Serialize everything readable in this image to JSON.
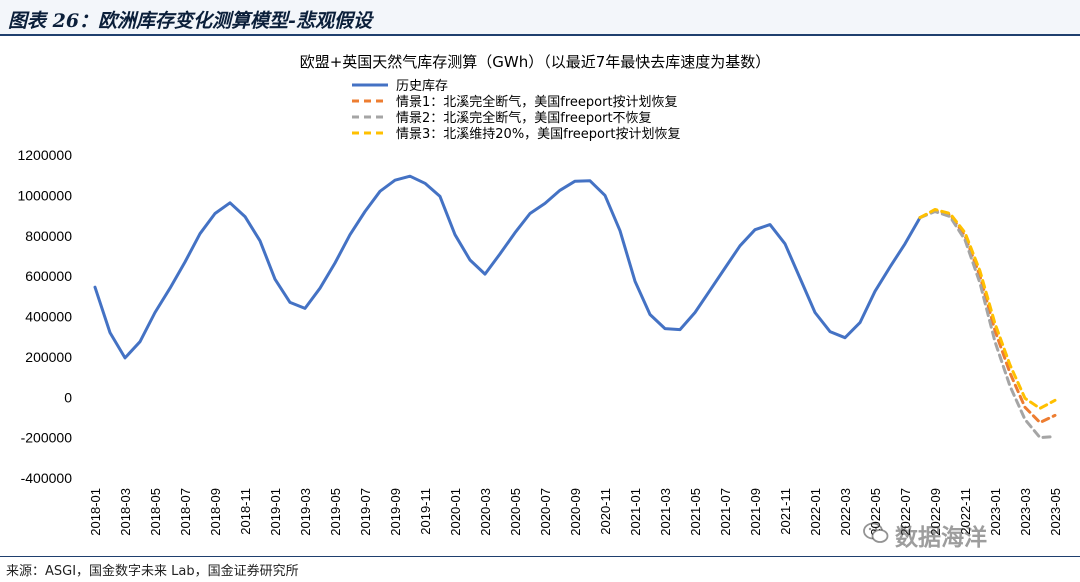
{
  "figure": {
    "label": "图表 26：欧洲库存变化测算模型-悲观假设",
    "source": "来源：ASGI，国金数字未来 Lab，国金证券研究所",
    "watermark": "数据海洋"
  },
  "chart_data": {
    "type": "line",
    "title": "欧盟+英国天然气库存测算（GWh）（以最近7年最快去库速度为基数）",
    "xlabel": "",
    "ylabel": "",
    "ylim": [
      -400000,
      1200000
    ],
    "yticks": [
      -400000,
      -200000,
      0,
      200000,
      400000,
      600000,
      800000,
      1000000,
      1200000
    ],
    "ytick_labels": [
      "-400000",
      "-200000",
      "0",
      "200000",
      "400000",
      "600000",
      "800000",
      "1000000",
      "1200000"
    ],
    "xticks": [
      "2018-01",
      "2018-03",
      "2018-05",
      "2018-07",
      "2018-09",
      "2018-11",
      "2019-01",
      "2019-03",
      "2019-05",
      "2019-07",
      "2019-09",
      "2019-11",
      "2020-01",
      "2020-03",
      "2020-05",
      "2020-07",
      "2020-09",
      "2020-11",
      "2021-01",
      "2021-03",
      "2021-05",
      "2021-07",
      "2021-09",
      "2021-11",
      "2022-01",
      "2022-03",
      "2022-05",
      "2022-07",
      "2022-09",
      "2022-11",
      "2023-01",
      "2023-03",
      "2023-05"
    ],
    "x_start": "2018-01",
    "x_end": "2023-05",
    "grid": false,
    "legend_position": "top-left",
    "series": [
      {
        "name": "历史库存",
        "color": "#4472c4",
        "dash": false,
        "points": [
          [
            "2018-01",
            545000
          ],
          [
            "2018-02",
            320000
          ],
          [
            "2018-03",
            195000
          ],
          [
            "2018-04",
            275000
          ],
          [
            "2018-05",
            420000
          ],
          [
            "2018-06",
            540000
          ],
          [
            "2018-07",
            670000
          ],
          [
            "2018-08",
            810000
          ],
          [
            "2018-09",
            910000
          ],
          [
            "2018-10",
            963000
          ],
          [
            "2018-11",
            895000
          ],
          [
            "2018-12",
            775000
          ],
          [
            "2019-01",
            585000
          ],
          [
            "2019-02",
            470000
          ],
          [
            "2019-03",
            440000
          ],
          [
            "2019-04",
            540000
          ],
          [
            "2019-05",
            665000
          ],
          [
            "2019-06",
            805000
          ],
          [
            "2019-07",
            920000
          ],
          [
            "2019-08",
            1020000
          ],
          [
            "2019-09",
            1075000
          ],
          [
            "2019-10",
            1095000
          ],
          [
            "2019-11",
            1060000
          ],
          [
            "2019-12",
            995000
          ],
          [
            "2020-01",
            805000
          ],
          [
            "2020-02",
            680000
          ],
          [
            "2020-03",
            610000
          ],
          [
            "2020-04",
            710000
          ],
          [
            "2020-05",
            815000
          ],
          [
            "2020-06",
            910000
          ],
          [
            "2020-07",
            960000
          ],
          [
            "2020-08",
            1025000
          ],
          [
            "2020-09",
            1070000
          ],
          [
            "2020-10",
            1072000
          ],
          [
            "2020-11",
            1000000
          ],
          [
            "2020-12",
            825000
          ],
          [
            "2021-01",
            575000
          ],
          [
            "2021-02",
            410000
          ],
          [
            "2021-03",
            340000
          ],
          [
            "2021-04",
            335000
          ],
          [
            "2021-05",
            420000
          ],
          [
            "2021-06",
            530000
          ],
          [
            "2021-07",
            640000
          ],
          [
            "2021-08",
            750000
          ],
          [
            "2021-09",
            830000
          ],
          [
            "2021-10",
            855000
          ],
          [
            "2021-11",
            760000
          ],
          [
            "2021-12",
            590000
          ],
          [
            "2022-01",
            420000
          ],
          [
            "2022-02",
            325000
          ],
          [
            "2022-03",
            295000
          ],
          [
            "2022-04",
            370000
          ],
          [
            "2022-05",
            525000
          ],
          [
            "2022-06",
            645000
          ],
          [
            "2022-07",
            760000
          ],
          [
            "2022-08",
            890000
          ]
        ]
      },
      {
        "name": "情景1：北溪完全断气，美国freeport按计划恢复",
        "color": "#ed7d31",
        "dash": true,
        "points": [
          [
            "2022-08",
            890000
          ],
          [
            "2022-09",
            925000
          ],
          [
            "2022-10",
            905000
          ],
          [
            "2022-11",
            800000
          ],
          [
            "2022-12",
            600000
          ],
          [
            "2023-01",
            330000
          ],
          [
            "2023-02",
            120000
          ],
          [
            "2023-03",
            -50000
          ],
          [
            "2023-04",
            -125000
          ],
          [
            "2023-05",
            -90000
          ]
        ]
      },
      {
        "name": "情景2：北溪完全断气，美国freeport不恢复",
        "color": "#a5a5a5",
        "dash": true,
        "points": [
          [
            "2022-08",
            890000
          ],
          [
            "2022-09",
            920000
          ],
          [
            "2022-10",
            895000
          ],
          [
            "2022-11",
            780000
          ],
          [
            "2022-12",
            565000
          ],
          [
            "2023-01",
            275000
          ],
          [
            "2023-02",
            55000
          ],
          [
            "2023-03",
            -110000
          ],
          [
            "2023-04",
            -200000
          ],
          [
            "2023-05",
            -195000
          ]
        ]
      },
      {
        "name": "情景3：北溪维持20%，美国freeport按计划恢复",
        "color": "#ffc000",
        "dash": true,
        "points": [
          [
            "2022-08",
            890000
          ],
          [
            "2022-09",
            930000
          ],
          [
            "2022-10",
            910000
          ],
          [
            "2022-11",
            815000
          ],
          [
            "2022-12",
            625000
          ],
          [
            "2023-01",
            365000
          ],
          [
            "2023-02",
            160000
          ],
          [
            "2023-03",
            -5000
          ],
          [
            "2023-04",
            -55000
          ],
          [
            "2023-05",
            -15000
          ]
        ]
      }
    ]
  }
}
